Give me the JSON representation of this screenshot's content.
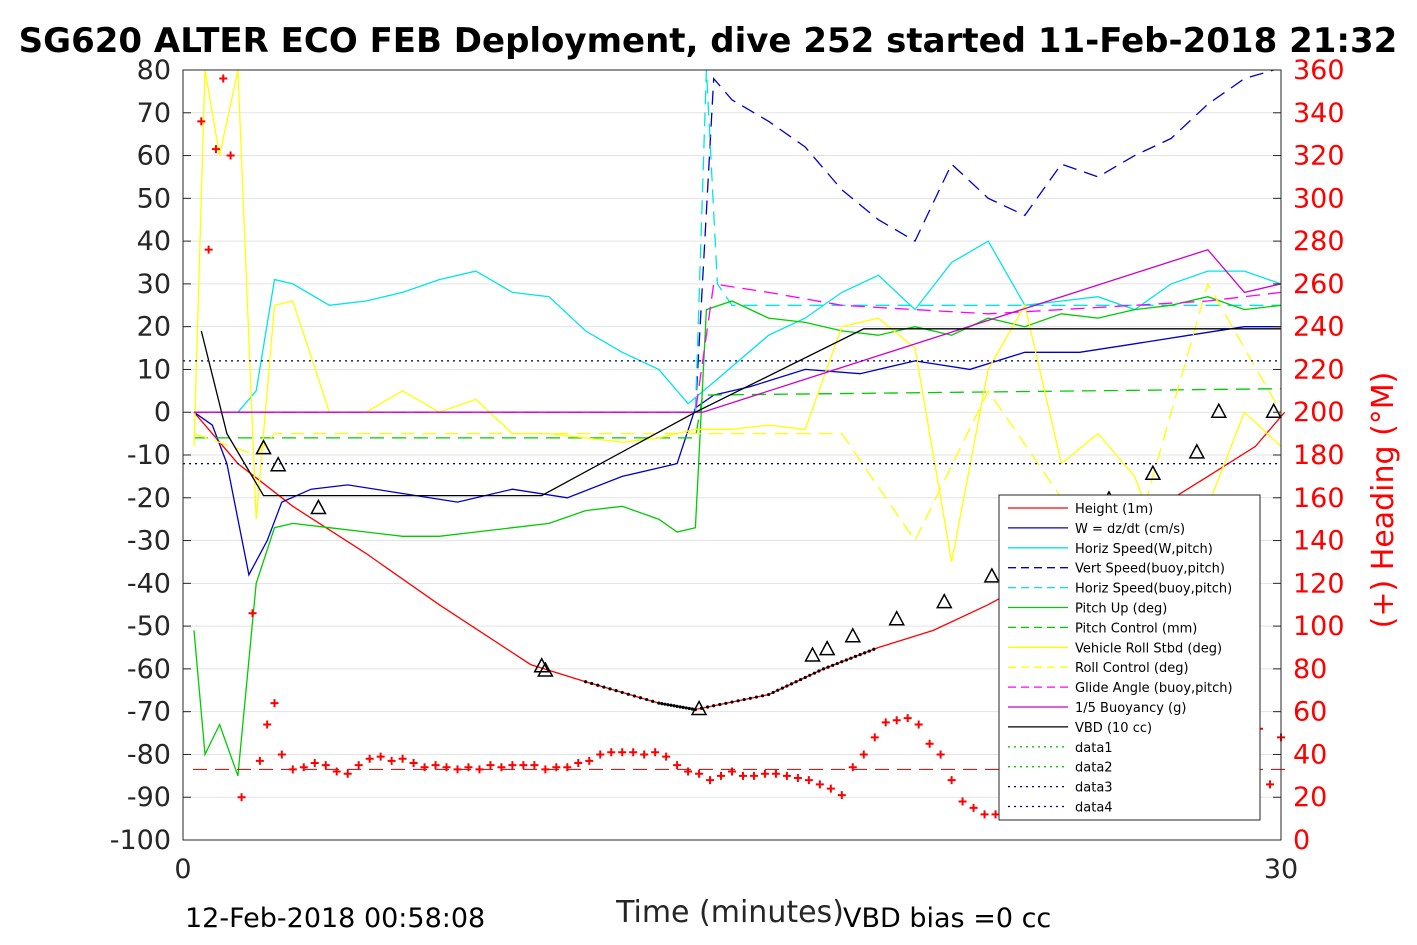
{
  "chart_data": {
    "type": "line",
    "title": "SG620 ALTER ECO FEB Deployment, dive 252 started 11-Feb-2018 21:32",
    "xlabel": "Time (minutes)",
    "ylabel_right": "(+) Heading (°M)",
    "xlim": [
      0,
      30
    ],
    "ylim_left": [
      -100,
      80
    ],
    "ylim_right": [
      0,
      360
    ],
    "x_ticks": [
      "0",
      "30"
    ],
    "y_ticks_left": [
      "80",
      "70",
      "60",
      "50",
      "40",
      "30",
      "20",
      "10",
      "0",
      "-10",
      "-20",
      "-30",
      "-40",
      "-50",
      "-60",
      "-70",
      "-80",
      "-90",
      "-100"
    ],
    "y_ticks_right": [
      "360",
      "340",
      "320",
      "300",
      "280",
      "260",
      "240",
      "220",
      "200",
      "180",
      "160",
      "140",
      "120",
      "100",
      "80",
      "60",
      "40",
      "20",
      "0"
    ],
    "footer_left": "12-Feb-2018 00:58:08",
    "footer_right": "VBD bias =0 cc",
    "grid": true,
    "legend_position": "lower-right",
    "series": [
      {
        "name": "Height (1m)",
        "color": "#ff0000",
        "style": "solid",
        "x": [
          0.3,
          1.5,
          3,
          5,
          7,
          9.5,
          11,
          13,
          14,
          16,
          17.5,
          19,
          20.5,
          22,
          23.5,
          25,
          26.5,
          28,
          29.3,
          30.1
        ],
        "y": [
          0,
          -12,
          -22,
          -33,
          -45,
          -59,
          -63,
          -68,
          -69.5,
          -66,
          -60,
          -55,
          -51,
          -45,
          -38,
          -31,
          -23,
          -15,
          -8,
          0
        ]
      },
      {
        "name": "W = dz/dt (cm/s)",
        "color": "#0000cc",
        "style": "solid",
        "x": [
          0.3,
          0.8,
          1.2,
          1.8,
          2.3,
          2.7,
          3.5,
          4.5,
          6,
          7.5,
          9,
          10.5,
          12,
          13.5,
          14,
          14.5,
          15.5,
          17,
          18.5,
          20,
          21.5,
          23,
          24.5,
          26,
          27.5,
          29,
          30
        ],
        "y": [
          0,
          -3,
          -12,
          -38,
          -30,
          -21,
          -18,
          -17,
          -19,
          -21,
          -18,
          -20,
          -15,
          -12,
          1,
          4,
          6,
          10,
          9,
          12,
          10,
          14,
          14,
          16,
          18,
          20,
          20
        ]
      },
      {
        "name": "Horiz Speed(W,pitch)",
        "color": "#00e5e5",
        "style": "solid",
        "x": [
          0.3,
          1.5,
          2,
          2.5,
          3,
          4,
          5,
          6,
          7,
          8,
          9,
          10,
          11,
          12,
          13,
          13.8,
          14.5,
          16,
          17,
          18,
          19,
          20,
          21,
          22,
          23,
          24,
          25,
          26,
          27,
          28,
          29,
          30
        ],
        "y": [
          0,
          0,
          5,
          31,
          30,
          25,
          26,
          28,
          31,
          33,
          28,
          27,
          19,
          14,
          10,
          2,
          7,
          18,
          22,
          28,
          32,
          24,
          35,
          40,
          25,
          26,
          27,
          24,
          30,
          33,
          33,
          30
        ]
      },
      {
        "name": "Vert Speed(buoy,pitch)",
        "color": "#0000cc",
        "style": "dashed",
        "x": [
          14,
          14.5,
          15,
          16,
          17,
          18,
          19,
          20,
          21,
          22,
          23,
          24,
          25,
          26,
          27,
          28,
          29,
          29.8
        ],
        "y": [
          0,
          78,
          73,
          68,
          62,
          52,
          45,
          40,
          58,
          50,
          46,
          58,
          55,
          60,
          64,
          72,
          78,
          80
        ]
      },
      {
        "name": "Horiz Speed(buoy,pitch)",
        "color": "#00e5e5",
        "style": "dashed",
        "x": [
          14,
          14.3,
          14.6,
          15,
          30
        ],
        "y": [
          0,
          80,
          30,
          25,
          25
        ]
      },
      {
        "name": "Pitch Up (deg)",
        "color": "#00cc00",
        "style": "solid",
        "x": [
          0.3,
          0.6,
          1,
          1.5,
          2,
          2.5,
          3,
          4,
          5,
          6,
          7,
          8,
          9,
          10,
          11,
          12,
          13,
          13.5,
          14,
          14.3,
          15,
          16,
          17,
          18,
          19,
          20,
          21,
          22,
          23,
          24,
          25,
          26,
          27,
          28,
          29,
          30
        ],
        "y": [
          -51,
          -80,
          -73,
          -85,
          -40,
          -27,
          -26,
          -27,
          -28,
          -29,
          -29,
          -28,
          -27,
          -26,
          -23,
          -22,
          -25,
          -28,
          -27,
          24,
          26,
          22,
          21,
          19,
          18,
          20,
          18,
          22,
          20,
          23,
          22,
          24,
          25,
          27,
          24,
          25
        ]
      },
      {
        "name": "Pitch Control (mm)",
        "color": "#00cc00",
        "style": "dashed",
        "x": [
          0.3,
          2.5,
          7,
          9.5,
          14,
          14.2,
          30
        ],
        "y": [
          -6,
          -6,
          -6,
          -6,
          -6,
          4,
          5.5
        ]
      },
      {
        "name": "Vehicle Roll Stbd (deg)",
        "color": "#ffff00",
        "style": "solid",
        "x": [
          0.3,
          0.6,
          1,
          1.5,
          2,
          2.5,
          3,
          4,
          5,
          6,
          7,
          8,
          9,
          10,
          11,
          12,
          13,
          14,
          15,
          16,
          17,
          18,
          19,
          20,
          21,
          22,
          23,
          24,
          25,
          26,
          27,
          28,
          29,
          30
        ],
        "y": [
          -8,
          80,
          60,
          80,
          -25,
          25,
          26,
          0,
          0,
          5,
          0,
          3,
          -5,
          -5,
          -6,
          -7,
          -6,
          -4,
          -4,
          -3,
          -4,
          20,
          22,
          15,
          -35,
          10,
          25,
          -12,
          -5,
          -15,
          -38,
          -22,
          0,
          -8
        ]
      },
      {
        "name": "Roll Control (deg)",
        "color": "#ffff00",
        "style": "dashed",
        "x": [
          0.3,
          2,
          2.5,
          3,
          9.5,
          14,
          15,
          18,
          20,
          22,
          24,
          26,
          28,
          30
        ],
        "y": [
          -5,
          -10,
          -5,
          -5,
          -5,
          -5,
          -5,
          -5,
          -30,
          5,
          -20,
          -30,
          30,
          0
        ]
      },
      {
        "name": "Glide Angle (buoy,pitch)",
        "color": "#ff00ff",
        "style": "dashed",
        "x": [
          0.3,
          14,
          14.5,
          16,
          18,
          20,
          22,
          24,
          26,
          28,
          30
        ],
        "y": [
          0,
          0,
          30,
          28,
          25,
          24,
          23,
          24,
          25,
          26,
          28
        ]
      },
      {
        "name": "1/5 Buoyancy (g)",
        "color": "#cc00cc",
        "style": "solid",
        "x": [
          0.3,
          2.5,
          14,
          14.2,
          28,
          29,
          30
        ],
        "y": [
          0,
          0,
          0,
          0,
          38,
          28,
          30
        ]
      },
      {
        "name": "VBD (10 cc)",
        "color": "#000000",
        "style": "solid",
        "x": [
          0.5,
          1.2,
          2.2,
          9.8,
          14,
          18.6,
          30
        ],
        "y": [
          19,
          -5,
          -19.5,
          -19.5,
          0,
          19.5,
          19.5
        ]
      },
      {
        "name": "data1",
        "color": "#00cc00",
        "style": "dotted",
        "x": [
          0,
          30
        ],
        "y": [
          12,
          12
        ]
      },
      {
        "name": "data2",
        "color": "#00cc00",
        "style": "dotted",
        "x": [
          0,
          30
        ],
        "y": [
          -12,
          -12
        ]
      },
      {
        "name": "data3",
        "color": "#000099",
        "style": "dotted",
        "x": [
          0,
          30
        ],
        "y": [
          12,
          12
        ]
      },
      {
        "name": "data4",
        "color": "#000099",
        "style": "dotted",
        "x": [
          0,
          30
        ],
        "y": [
          -12,
          -12
        ]
      }
    ],
    "heading_reference": {
      "color": "#cc0000",
      "style": "dashed",
      "y_right": 33
    },
    "heading_points": {
      "color": "#ff0000",
      "x": [
        0.5,
        0.7,
        0.9,
        1.1,
        1.3,
        1.6,
        1.9,
        2.1,
        2.3,
        2.5,
        2.7,
        3.0,
        3.3,
        3.6,
        3.9,
        4.2,
        4.5,
        4.8,
        5.1,
        5.4,
        5.7,
        6.0,
        6.3,
        6.6,
        6.9,
        7.2,
        7.5,
        7.8,
        8.1,
        8.4,
        8.7,
        9.0,
        9.3,
        9.6,
        9.9,
        10.2,
        10.5,
        10.8,
        11.1,
        11.4,
        11.7,
        12.0,
        12.3,
        12.6,
        12.9,
        13.2,
        13.5,
        13.8,
        14.1,
        14.4,
        14.7,
        15.0,
        15.3,
        15.6,
        15.9,
        16.2,
        16.5,
        16.8,
        17.1,
        17.4,
        17.7,
        18.0,
        18.3,
        18.6,
        18.9,
        19.2,
        19.5,
        19.8,
        20.1,
        20.4,
        20.7,
        21.0,
        21.3,
        21.6,
        21.9,
        22.2,
        22.5,
        22.8,
        23.1,
        23.4,
        23.7,
        24.0,
        24.3,
        24.6,
        24.9,
        25.2,
        25.5,
        25.8,
        26.1,
        26.4,
        26.7,
        27.0,
        27.3,
        27.6,
        27.9,
        28.2,
        28.5,
        28.8,
        29.1,
        29.4,
        29.7,
        30.0
      ],
      "y": [
        336,
        276,
        323,
        356,
        320,
        20,
        106,
        37,
        54,
        64,
        40,
        33,
        34,
        36,
        35,
        32,
        31,
        35,
        38,
        39,
        37,
        38,
        36,
        34,
        35,
        34,
        33,
        34,
        33,
        35,
        34,
        35,
        35,
        35,
        33,
        34,
        34,
        36,
        37,
        40,
        41,
        41,
        41,
        40,
        41,
        39,
        35,
        32,
        31,
        28,
        30,
        32,
        30,
        30,
        31,
        31,
        30,
        29,
        28,
        26,
        24,
        21,
        34,
        40,
        48,
        55,
        56,
        57,
        54,
        45,
        40,
        28,
        18,
        15,
        12,
        12,
        14,
        20,
        30,
        42,
        48,
        52,
        56,
        57,
        58,
        48,
        36,
        34,
        24,
        24,
        22,
        22,
        22,
        26,
        36,
        34,
        32,
        28,
        45,
        52,
        26,
        48
      ]
    },
    "triangle_markers": {
      "color": "#000000",
      "x": [
        2.2,
        2.6,
        3.7,
        9.8,
        9.9,
        14.1,
        17.2,
        17.6,
        18.3,
        19.5,
        20.8,
        22.1,
        23.3,
        24.5,
        25.3,
        26.5,
        27.7,
        28.3,
        29.8
      ],
      "y": [
        -8.5,
        -12.5,
        -22.5,
        -59.5,
        -60.5,
        -69.5,
        -57,
        -55.5,
        -52.5,
        -48.5,
        -44.5,
        -38.5,
        -33,
        -26.5,
        -20.5,
        -14.5,
        -9.5,
        0,
        0
      ]
    }
  }
}
